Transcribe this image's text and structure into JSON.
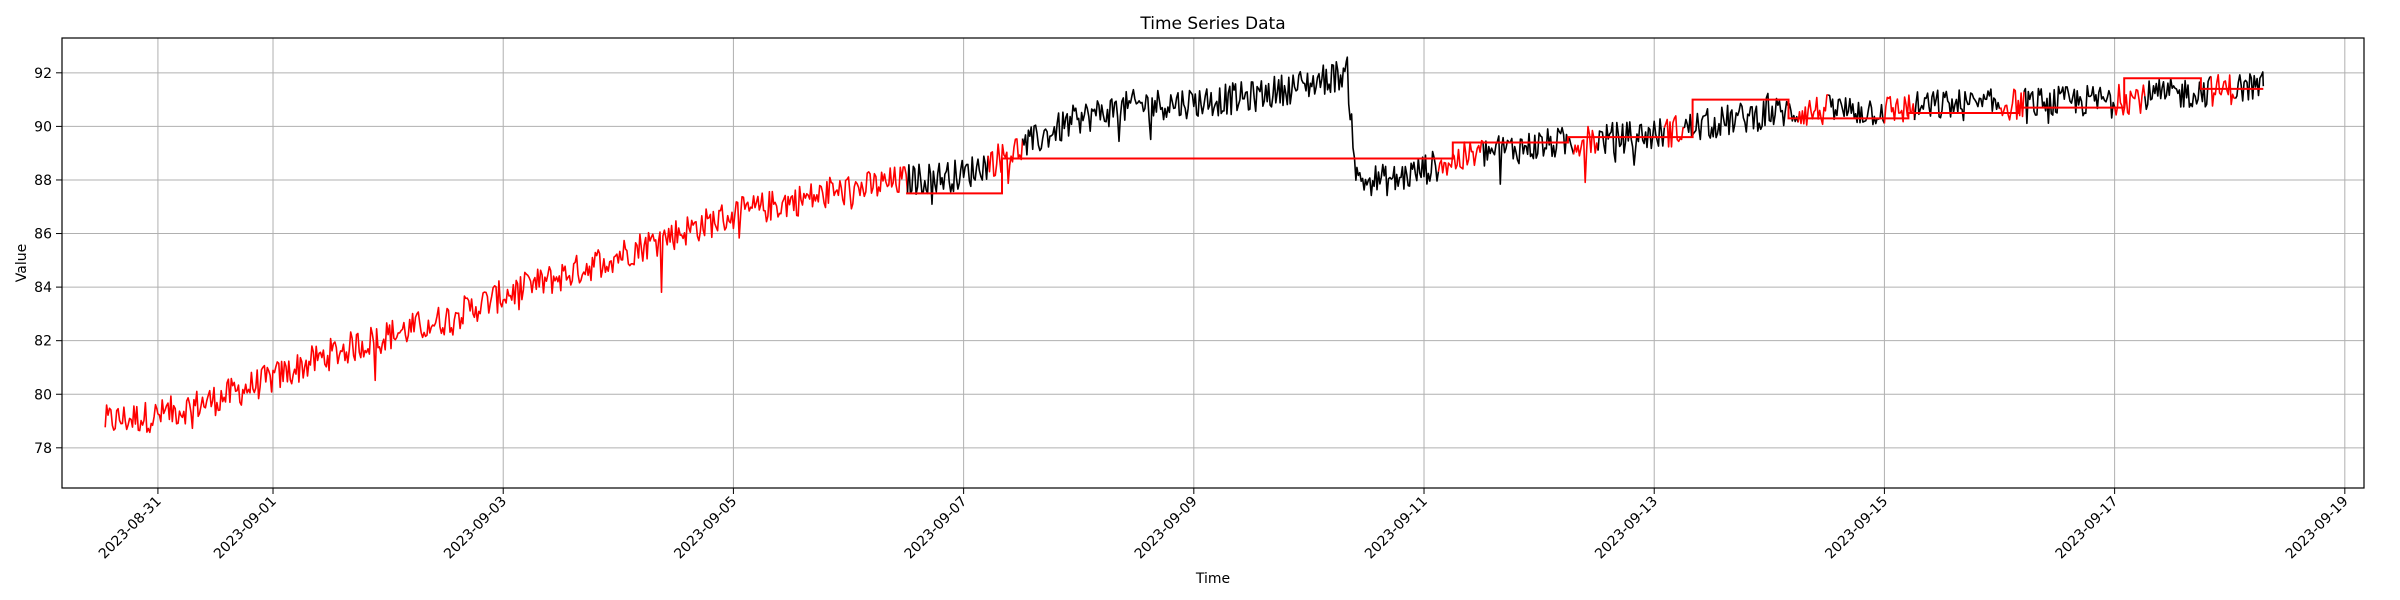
{
  "chart_data": {
    "type": "line",
    "title": "Time Series Data",
    "xlabel": "Time",
    "ylabel": "Value",
    "x_tick_labels": [
      "2023-08-31",
      "2023-09-01",
      "2023-09-03",
      "2023-09-05",
      "2023-09-07",
      "2023-09-09",
      "2023-09-11",
      "2023-09-13",
      "2023-09-15",
      "2023-09-17",
      "2023-09-19"
    ],
    "y_tick_labels": [
      "78",
      "80",
      "82",
      "84",
      "86",
      "88",
      "90",
      "92"
    ],
    "xlim": [
      "2023-08-30T04:00",
      "2023-09-19T04:00"
    ],
    "ylim": [
      76.5,
      93.3
    ],
    "grid": true,
    "x_tick_rotation": 45,
    "colors": {
      "observed": "#000000",
      "highlighted": "#ff0000",
      "grid": "#b0b0b0"
    },
    "series": [
      {
        "style": "noisy-line",
        "points": [
          [
            "2023-08-30T13:00",
            79.0
          ],
          [
            "2023-08-31T00:00",
            79.2
          ],
          [
            "2023-08-31T12:00",
            79.8
          ],
          [
            "2023-09-01T00:00",
            80.6
          ],
          [
            "2023-09-01T12:00",
            81.5
          ],
          [
            "2023-09-02T00:00",
            82.2
          ],
          [
            "2023-09-02T12:00",
            82.8
          ],
          [
            "2023-09-03T00:00",
            83.7
          ],
          [
            "2023-09-03T12:00",
            84.4
          ],
          [
            "2023-09-04T00:00",
            85.2
          ],
          [
            "2023-09-04T12:00",
            86.0
          ],
          [
            "2023-09-05T00:00",
            86.7
          ],
          [
            "2023-09-05T12:00",
            87.2
          ],
          [
            "2023-09-06T00:00",
            87.6
          ],
          [
            "2023-09-06T12:00",
            88.0
          ],
          [
            "2023-09-07T00:00",
            88.2
          ],
          [
            "2023-09-07T12:00",
            89.2
          ],
          [
            "2023-09-08T00:00",
            90.3
          ],
          [
            "2023-09-08T12:00",
            90.8
          ],
          [
            "2023-09-09T00:00",
            90.9
          ],
          [
            "2023-09-09T12:00",
            91.1
          ],
          [
            "2023-09-10T00:00",
            91.6
          ],
          [
            "2023-09-10T08:00",
            92.0
          ],
          [
            "2023-09-10T10:00",
            88.0
          ],
          [
            "2023-09-10T18:00",
            88.0
          ],
          [
            "2023-09-11T00:00",
            88.4
          ],
          [
            "2023-09-11T12:00",
            89.0
          ],
          [
            "2023-09-12T00:00",
            89.3
          ],
          [
            "2023-09-12T12:00",
            89.5
          ],
          [
            "2023-09-13T00:00",
            89.7
          ],
          [
            "2023-09-13T12:00",
            90.1
          ],
          [
            "2023-09-14T00:00",
            90.5
          ],
          [
            "2023-09-14T12:00",
            90.6
          ],
          [
            "2023-09-15T00:00",
            90.6
          ],
          [
            "2023-09-15T12:00",
            90.8
          ],
          [
            "2023-09-16T00:00",
            90.8
          ],
          [
            "2023-09-16T12:00",
            90.9
          ],
          [
            "2023-09-17T00:00",
            91.0
          ],
          [
            "2023-09-17T12:00",
            91.2
          ],
          [
            "2023-09-18T00:00",
            91.4
          ],
          [
            "2023-09-18T07:00",
            91.5
          ]
        ],
        "noise_amplitude": 0.6,
        "red_segments": [
          [
            "2023-08-30T13:00",
            "2023-09-06T12:00"
          ],
          [
            "2023-09-07T05:00",
            "2023-09-07T12:00"
          ],
          [
            "2023-09-11T03:00",
            "2023-09-11T12:00"
          ],
          [
            "2023-09-12T07:00",
            "2023-09-12T12:00"
          ],
          [
            "2023-09-13T02:00",
            "2023-09-13T06:00"
          ],
          [
            "2023-09-14T06:00",
            "2023-09-14T12:00"
          ],
          [
            "2023-09-15T00:00",
            "2023-09-15T06:00"
          ],
          [
            "2023-09-16T00:00",
            "2023-09-16T05:00"
          ],
          [
            "2023-09-17T00:00",
            "2023-09-17T06:00"
          ],
          [
            "2023-09-17T20:00",
            "2023-09-18T01:00"
          ]
        ]
      },
      {
        "style": "step-line",
        "color": "red",
        "points": [
          [
            "2023-09-06T12:00",
            87.5
          ],
          [
            "2023-09-07T08:00",
            87.5
          ],
          [
            "2023-09-07T08:00",
            88.8
          ],
          [
            "2023-09-11T06:00",
            88.8
          ],
          [
            "2023-09-11T06:00",
            89.4
          ],
          [
            "2023-09-12T06:00",
            89.4
          ],
          [
            "2023-09-12T06:00",
            89.6
          ],
          [
            "2023-09-13T08:00",
            89.6
          ],
          [
            "2023-09-13T08:00",
            91.0
          ],
          [
            "2023-09-14T04:00",
            91.0
          ],
          [
            "2023-09-14T04:00",
            90.3
          ],
          [
            "2023-09-15T05:00",
            90.3
          ],
          [
            "2023-09-15T05:00",
            90.5
          ],
          [
            "2023-09-16T04:00",
            90.5
          ],
          [
            "2023-09-16T04:00",
            90.7
          ],
          [
            "2023-09-17T02:00",
            90.7
          ],
          [
            "2023-09-17T02:00",
            91.8
          ],
          [
            "2023-09-17T18:00",
            91.8
          ],
          [
            "2023-09-17T18:00",
            91.4
          ],
          [
            "2023-09-18T07:00",
            91.4
          ]
        ]
      }
    ]
  }
}
